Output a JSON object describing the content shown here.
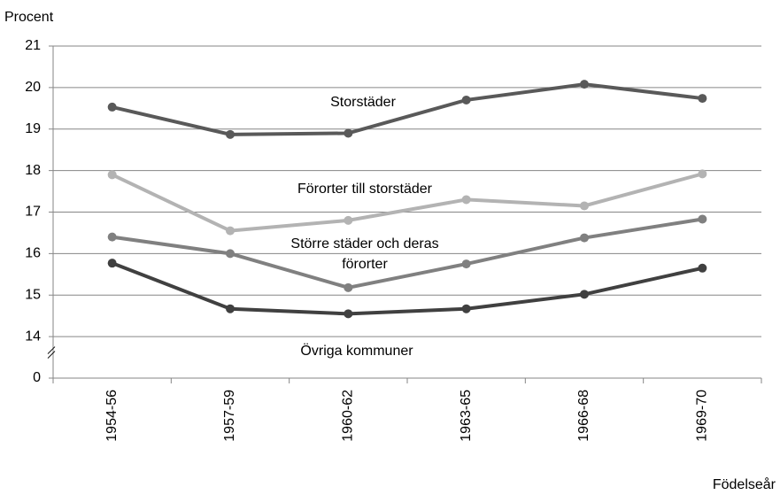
{
  "chart_data": {
    "type": "line",
    "y_label": "Procent",
    "x_label": "Födelseår",
    "categories": [
      "1954-56",
      "1957-59",
      "1960-62",
      "1963-65",
      "1966-68",
      "1969-70"
    ],
    "series": [
      {
        "name": "Storstäder",
        "color": "#595959",
        "values": [
          19.53,
          18.87,
          18.9,
          19.7,
          20.08,
          19.74
        ]
      },
      {
        "name": "Förorter till storstäder",
        "color": "#b3b3b3",
        "values": [
          17.9,
          16.55,
          16.8,
          17.3,
          17.15,
          17.92
        ]
      },
      {
        "name": "Större städer och deras förorter",
        "color": "#808080",
        "values": [
          16.4,
          16.0,
          15.18,
          15.75,
          16.38,
          16.83
        ]
      },
      {
        "name": "Övriga kommuner",
        "color": "#404040",
        "values": [
          15.77,
          14.67,
          14.55,
          14.67,
          15.02,
          15.65
        ]
      }
    ],
    "ylim": [
      0,
      21
    ],
    "yticks": [
      0,
      14,
      15,
      16,
      17,
      18,
      19,
      20,
      21
    ],
    "axis_break": [
      0,
      14
    ],
    "grid": true
  }
}
